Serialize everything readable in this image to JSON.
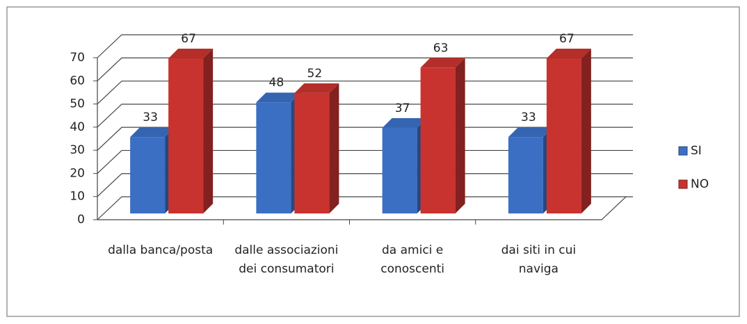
{
  "chart_data": {
    "type": "bar3d",
    "categories": [
      "dalla banca/posta",
      "dalle associazioni dei consumatori",
      "da amici e conoscenti",
      "dai siti in cui naviga"
    ],
    "series": [
      {
        "name": "SI",
        "color": "#3b6fc4",
        "values": [
          33,
          48,
          37,
          33
        ]
      },
      {
        "name": "NO",
        "color": "#c8332f",
        "values": [
          67,
          52,
          63,
          67
        ]
      }
    ],
    "ylim": [
      0,
      70
    ],
    "yticks": [
      0,
      10,
      20,
      30,
      40,
      50,
      60,
      70
    ],
    "grid": true,
    "legend": "right"
  }
}
